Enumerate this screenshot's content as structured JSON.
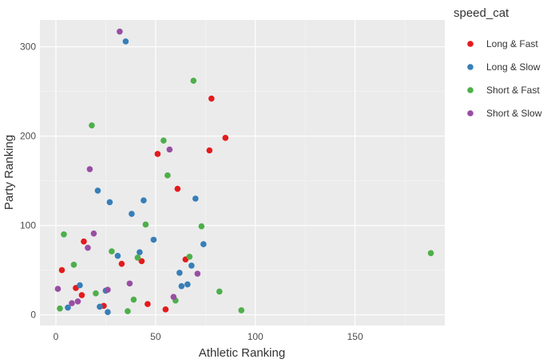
{
  "chart_data": {
    "type": "scatter",
    "xlabel": "Athletic Ranking",
    "ylabel": "Party Ranking",
    "xlim": [
      -8,
      195
    ],
    "ylim": [
      -12,
      330
    ],
    "x_ticks": [
      0,
      50,
      100,
      150
    ],
    "y_ticks": [
      0,
      100,
      200,
      300
    ],
    "grid": true,
    "legend": {
      "title": "speed_cat",
      "placement": "right"
    },
    "series": [
      {
        "name": "Long & Fast",
        "color": "#e41a1c",
        "points": [
          [
            3,
            50
          ],
          [
            10,
            30
          ],
          [
            13,
            22
          ],
          [
            14,
            82
          ],
          [
            24,
            10
          ],
          [
            33,
            57
          ],
          [
            43,
            60
          ],
          [
            46,
            12
          ],
          [
            51,
            180
          ],
          [
            55,
            6
          ],
          [
            61,
            141
          ],
          [
            65,
            62
          ],
          [
            77,
            184
          ],
          [
            78,
            242
          ],
          [
            85,
            198
          ]
        ]
      },
      {
        "name": "Long & Slow",
        "color": "#377eb8",
        "points": [
          [
            6,
            8
          ],
          [
            12,
            33
          ],
          [
            21,
            139
          ],
          [
            22,
            9
          ],
          [
            25,
            27
          ],
          [
            26,
            3
          ],
          [
            27,
            126
          ],
          [
            31,
            66
          ],
          [
            35,
            306
          ],
          [
            38,
            113
          ],
          [
            42,
            70
          ],
          [
            44,
            128
          ],
          [
            49,
            84
          ],
          [
            62,
            47
          ],
          [
            63,
            32
          ],
          [
            66,
            34
          ],
          [
            68,
            55
          ],
          [
            70,
            130
          ],
          [
            74,
            79
          ]
        ]
      },
      {
        "name": "Short & Fast",
        "color": "#4daf4a",
        "points": [
          [
            2,
            7
          ],
          [
            4,
            90
          ],
          [
            9,
            56
          ],
          [
            18,
            212
          ],
          [
            20,
            24
          ],
          [
            28,
            71
          ],
          [
            36,
            4
          ],
          [
            39,
            17
          ],
          [
            41,
            64
          ],
          [
            45,
            101
          ],
          [
            54,
            195
          ],
          [
            56,
            156
          ],
          [
            60,
            16
          ],
          [
            67,
            65
          ],
          [
            69,
            262
          ],
          [
            73,
            99
          ],
          [
            82,
            26
          ],
          [
            93,
            5
          ],
          [
            188,
            69
          ]
        ]
      },
      {
        "name": "Short & Slow",
        "color": "#984ea3",
        "points": [
          [
            1,
            29
          ],
          [
            8,
            13
          ],
          [
            11,
            15
          ],
          [
            16,
            75
          ],
          [
            17,
            163
          ],
          [
            19,
            91
          ],
          [
            26,
            28
          ],
          [
            32,
            317
          ],
          [
            37,
            35
          ],
          [
            57,
            185
          ],
          [
            59,
            20
          ],
          [
            71,
            46
          ]
        ]
      }
    ]
  }
}
